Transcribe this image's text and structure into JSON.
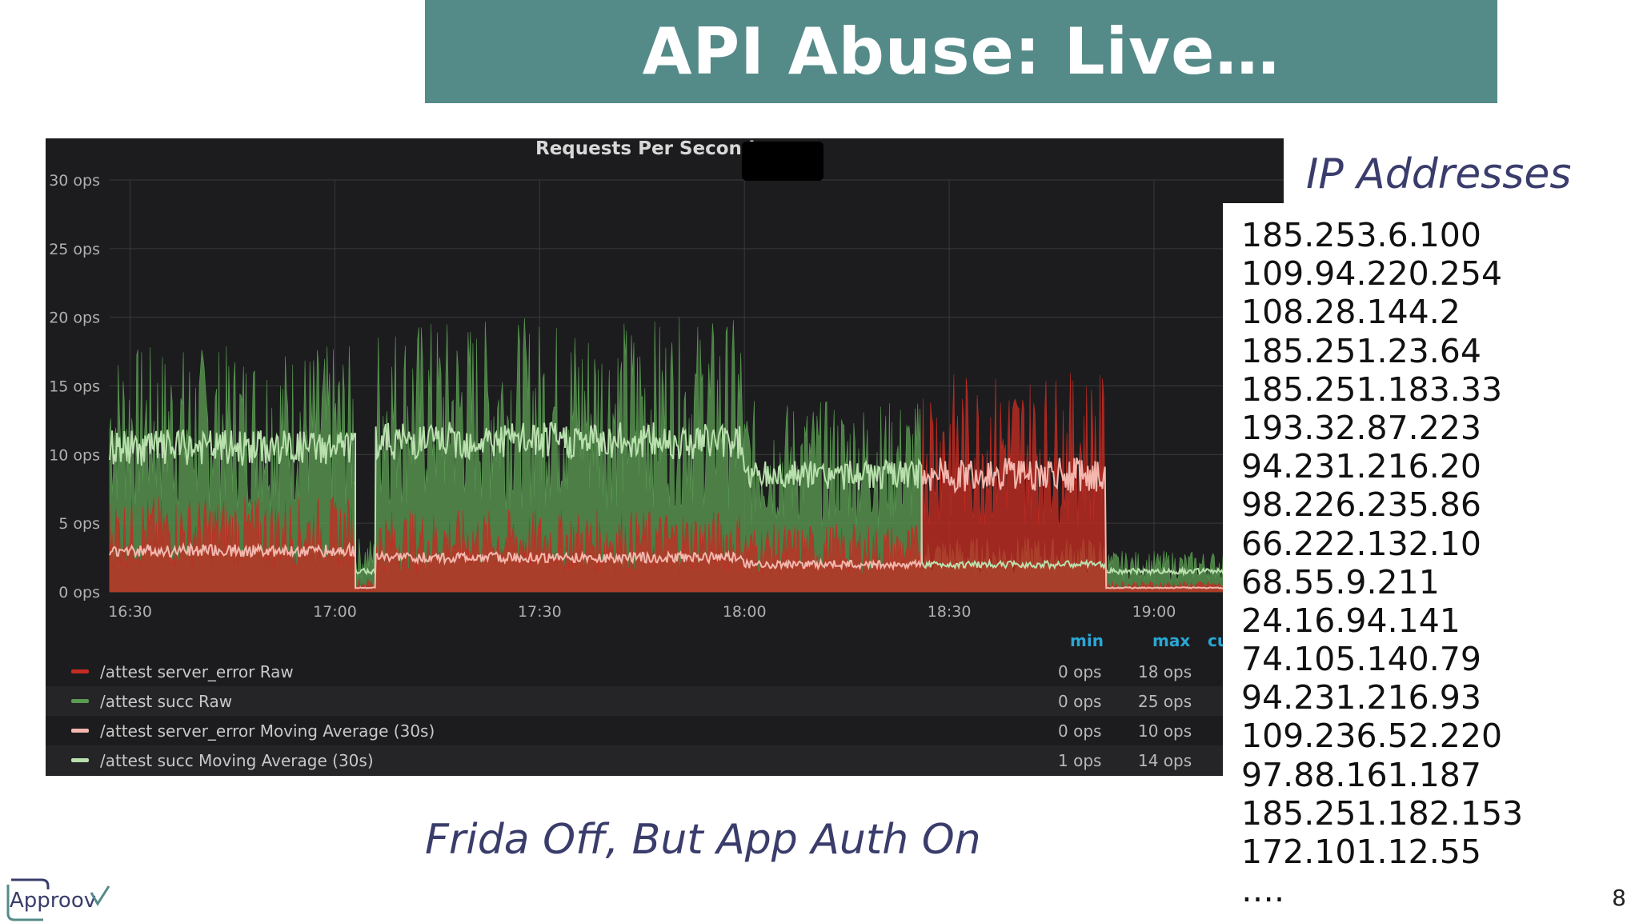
{
  "slide": {
    "title": "API Abuse: Live…",
    "ip_heading": "IP Addresses",
    "caption": "Frida Off, But App Auth On",
    "page_number": "8",
    "logo_text": "Approov",
    "ip_addresses": [
      "185.253.6.100",
      "109.94.220.254",
      "108.28.144.2",
      "185.251.23.64",
      "185.251.183.33",
      "193.32.87.223",
      "94.231.216.20",
      "98.226.235.86",
      "66.222.132.10",
      "68.55.9.211",
      "24.16.94.141",
      "74.105.140.79",
      "94.231.216.93",
      "109.236.52.220",
      "97.88.161.187",
      "185.251.182.153",
      "172.101.12.55",
      "…."
    ]
  },
  "chart_data": {
    "type": "area",
    "title": "Requests Per Second",
    "y_tick_labels": [
      "0 ops",
      "5 ops",
      "10 ops",
      "15 ops",
      "20 ops",
      "25 ops",
      "30 ops"
    ],
    "y_ticks": [
      0,
      5,
      10,
      15,
      20,
      25,
      30
    ],
    "x_tick_labels": [
      "16:30",
      "17:00",
      "17:30",
      "18:00",
      "18:30",
      "19:00"
    ],
    "x_ticks_minutes": [
      990,
      1020,
      1050,
      1080,
      1110,
      1140
    ],
    "x_range_minutes": [
      987,
      1159
    ],
    "ylim": [
      0,
      30
    ],
    "grid": true,
    "colors": {
      "succ": "#5a9a52",
      "succ_avg": "#b9e0ad",
      "error": "#c42b22",
      "error_avg": "#f3b7ae",
      "background": "#1c1c1e",
      "grid": "#3a3a3d"
    },
    "segments": [
      {
        "start": 987,
        "end": 1023,
        "succ": 10.5,
        "succ_peak": 18,
        "error": 3,
        "error_peak": 7
      },
      {
        "start": 1023,
        "end": 1026,
        "succ": 1.5,
        "succ_peak": 4,
        "error": 0.3,
        "error_peak": 1
      },
      {
        "start": 1026,
        "end": 1080,
        "succ": 11,
        "succ_peak": 20,
        "error": 2.5,
        "error_peak": 6
      },
      {
        "start": 1080,
        "end": 1106,
        "succ": 8.5,
        "succ_peak": 14,
        "error": 2,
        "error_peak": 5
      },
      {
        "start": 1106,
        "end": 1133,
        "succ": 2,
        "succ_peak": 4,
        "error": 8.5,
        "error_peak": 16
      },
      {
        "start": 1133,
        "end": 1159,
        "succ": 1.5,
        "succ_peak": 3,
        "error": 0.3,
        "error_peak": 0.8
      }
    ],
    "legend": {
      "headers": [
        "min",
        "max",
        "cu"
      ],
      "entries": [
        {
          "name": "/attest server_error Raw",
          "color": "#c42b22",
          "min": "0 ops",
          "max": "18 ops"
        },
        {
          "name": "/attest succ Raw",
          "color": "#5a9a52",
          "min": "0 ops",
          "max": "25 ops"
        },
        {
          "name": "/attest server_error Moving Average (30s)",
          "color": "#f3b7ae",
          "min": "0 ops",
          "max": "10 ops"
        },
        {
          "name": "/attest succ Moving Average (30s)",
          "color": "#b9e0ad",
          "min": "1 ops",
          "max": "14 ops"
        }
      ]
    }
  }
}
